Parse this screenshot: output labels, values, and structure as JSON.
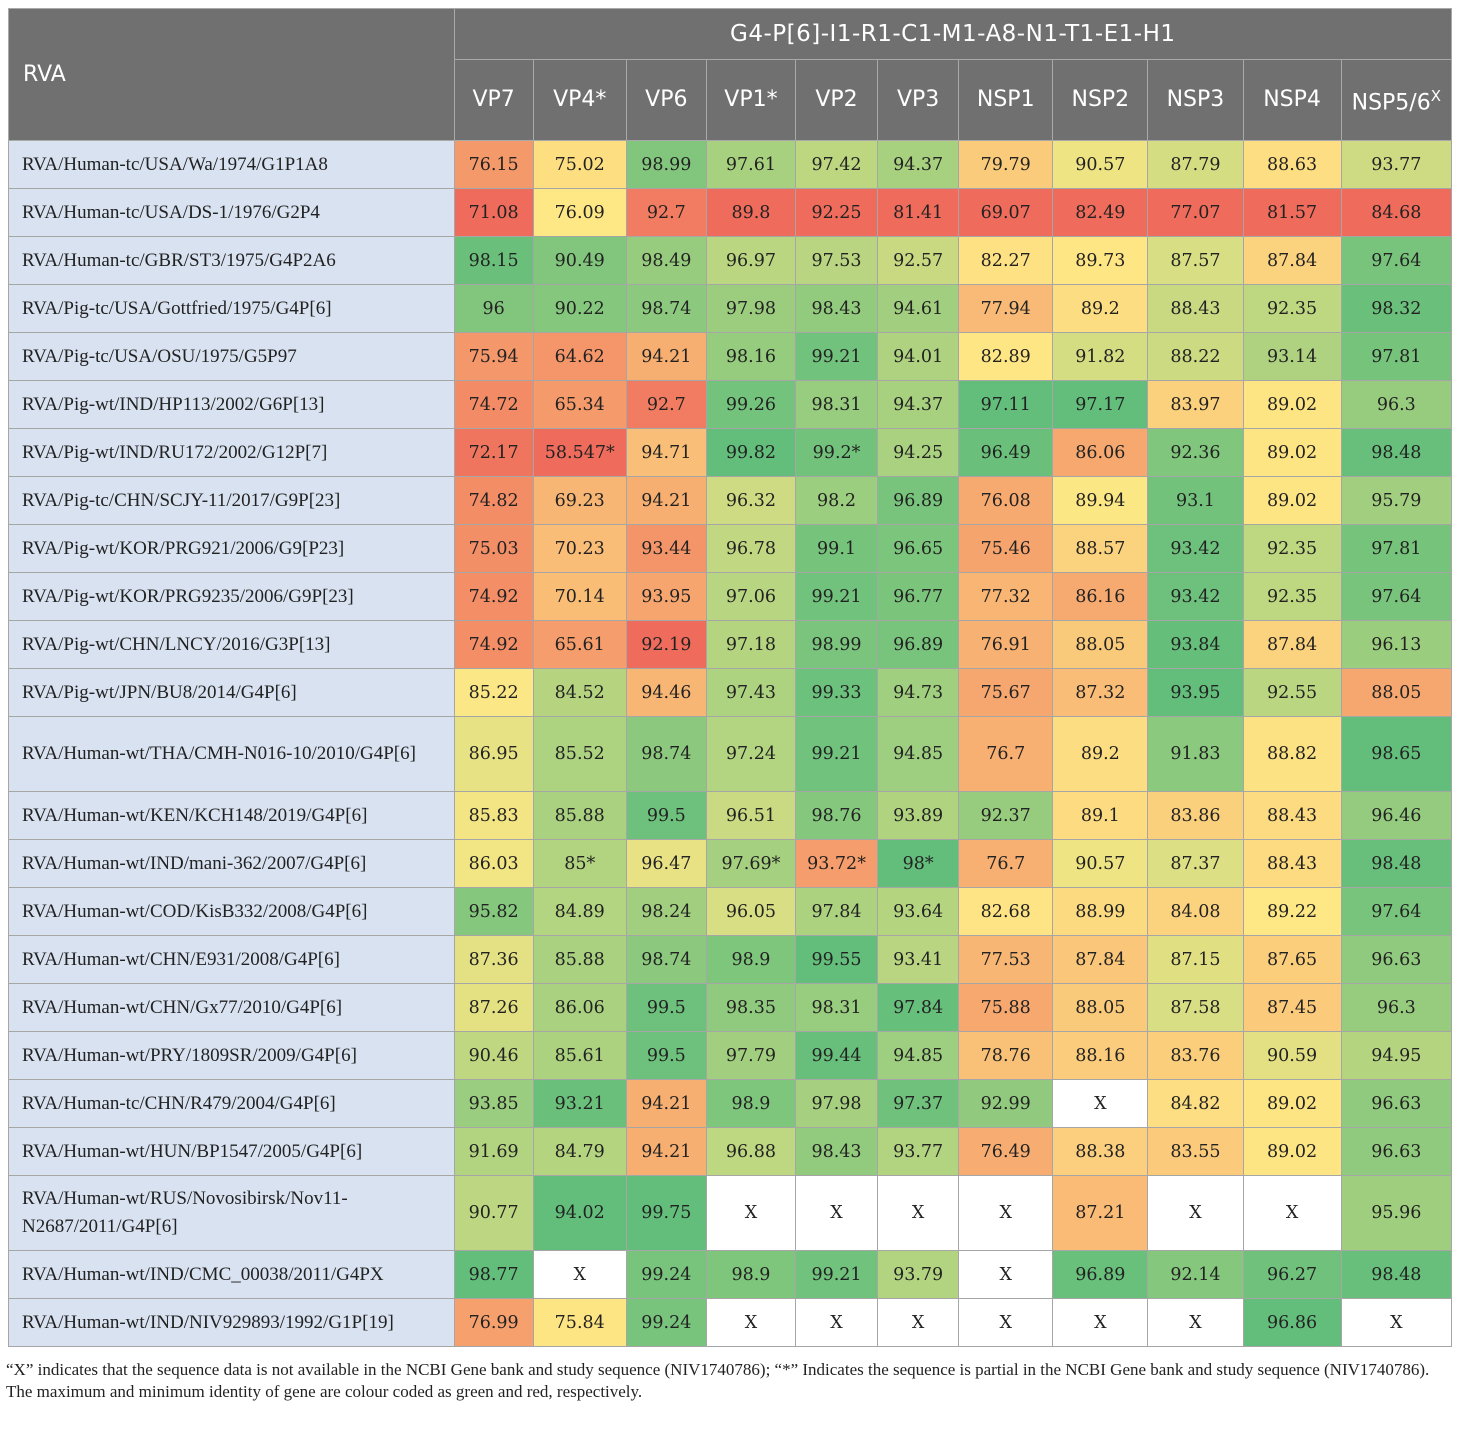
{
  "header": {
    "rva_label": "RVA",
    "group_label": "G4-P[6]-I1-R1-C1-M1-A8-N1-T1-E1-H1",
    "genes": [
      "VP7",
      "VP4*",
      "VP6",
      "VP1*",
      "VP2",
      "VP3",
      "NSP1",
      "NSP2",
      "NSP3",
      "NSP4",
      "NSP5/6"
    ],
    "nsp5_superscript": "X"
  },
  "rows": [
    {
      "strain": "RVA/Human-tc/USA/Wa/1974/G1P1A8",
      "values": [
        "76.15",
        "75.02",
        "98.99",
        "97.61",
        "97.42",
        "94.37",
        "79.79",
        "90.57",
        "87.79",
        "88.63",
        "93.77"
      ]
    },
    {
      "strain": "RVA/Human-tc/USA/DS-1/1976/G2P4",
      "values": [
        "71.08",
        "76.09",
        "92.7",
        "89.8",
        "92.25",
        "81.41",
        "69.07",
        "82.49",
        "77.07",
        "81.57",
        "84.68"
      ]
    },
    {
      "strain": "RVA/Human-tc/GBR/ST3/1975/G4P2A6",
      "values": [
        "98.15",
        "90.49",
        "98.49",
        "96.97",
        "97.53",
        "92.57",
        "82.27",
        "89.73",
        "87.57",
        "87.84",
        "97.64"
      ]
    },
    {
      "strain": "RVA/Pig-tc/USA/Gottfried/1975/G4P[6]",
      "values": [
        "96",
        "90.22",
        "98.74",
        "97.98",
        "98.43",
        "94.61",
        "77.94",
        "89.2",
        "88.43",
        "92.35",
        "98.32"
      ]
    },
    {
      "strain": "RVA/Pig-tc/USA/OSU/1975/G5P97",
      "values": [
        "75.94",
        "64.62",
        "94.21",
        "98.16",
        "99.21",
        "94.01",
        "82.89",
        "91.82",
        "88.22",
        "93.14",
        "97.81"
      ]
    },
    {
      "strain": "RVA/Pig-wt/IND/HP113/2002/G6P[13]",
      "values": [
        "74.72",
        "65.34",
        "92.7",
        "99.26",
        "98.31",
        "94.37",
        "97.11",
        "97.17",
        "83.97",
        "89.02",
        "96.3"
      ]
    },
    {
      "strain": "RVA/Pig-wt/IND/RU172/2002/G12P[7]",
      "values": [
        "72.17",
        "58.547*",
        "94.71",
        "99.82",
        "99.2*",
        "94.25",
        "96.49",
        "86.06",
        "92.36",
        "89.02",
        "98.48"
      ]
    },
    {
      "strain": "RVA/Pig-tc/CHN/SCJY-11/2017/G9P[23]",
      "values": [
        "74.82",
        "69.23",
        "94.21",
        "96.32",
        "98.2",
        "96.89",
        "76.08",
        "89.94",
        "93.1",
        "89.02",
        "95.79"
      ]
    },
    {
      "strain": "RVA/Pig-wt/KOR/PRG921/2006/G9[P23]",
      "values": [
        "75.03",
        "70.23",
        "93.44",
        "96.78",
        "99.1",
        "96.65",
        "75.46",
        "88.57",
        "93.42",
        "92.35",
        "97.81"
      ]
    },
    {
      "strain": "RVA/Pig-wt/KOR/PRG9235/2006/G9P[23]",
      "values": [
        "74.92",
        "70.14",
        "93.95",
        "97.06",
        "99.21",
        "96.77",
        "77.32",
        "86.16",
        "93.42",
        "92.35",
        "97.64"
      ]
    },
    {
      "strain": "RVA/Pig-wt/CHN/LNCY/2016/G3P[13]",
      "values": [
        "74.92",
        "65.61",
        "92.19",
        "97.18",
        "98.99",
        "96.89",
        "76.91",
        "88.05",
        "93.84",
        "87.84",
        "96.13"
      ]
    },
    {
      "strain": "RVA/Pig-wt/JPN/BU8/2014/G4P[6]",
      "values": [
        "85.22",
        "84.52",
        "94.46",
        "97.43",
        "99.33",
        "94.73",
        "75.67",
        "87.32",
        "93.95",
        "92.55",
        "88.05"
      ]
    },
    {
      "strain": "RVA/Human-wt/THA/CMH-N016-10/2010/G4P[6]",
      "values": [
        "86.95",
        "85.52",
        "98.74",
        "97.24",
        "99.21",
        "94.85",
        "76.7",
        "89.2",
        "91.83",
        "88.82",
        "98.65"
      ],
      "tall": true
    },
    {
      "strain": "RVA/Human-wt/KEN/KCH148/2019/G4P[6]",
      "values": [
        "85.83",
        "85.88",
        "99.5",
        "96.51",
        "98.76",
        "93.89",
        "92.37",
        "89.1",
        "83.86",
        "88.43",
        "96.46"
      ]
    },
    {
      "strain": "RVA/Human-wt/IND/mani-362/2007/G4P[6]",
      "values": [
        "86.03",
        "85*",
        "96.47",
        "97.69*",
        "93.72*",
        "98*",
        "76.7",
        "90.57",
        "87.37",
        "88.43",
        "98.48"
      ]
    },
    {
      "strain": "RVA/Human-wt/COD/KisB332/2008/G4P[6]",
      "values": [
        "95.82",
        "84.89",
        "98.24",
        "96.05",
        "97.84",
        "93.64",
        "82.68",
        "88.99",
        "84.08",
        "89.22",
        "97.64"
      ]
    },
    {
      "strain": "RVA/Human-wt/CHN/E931/2008/G4P[6]",
      "values": [
        "87.36",
        "85.88",
        "98.74",
        "98.9",
        "99.55",
        "93.41",
        "77.53",
        "87.84",
        "87.15",
        "87.65",
        "96.63"
      ]
    },
    {
      "strain": "RVA/Human-wt/CHN/Gx77/2010/G4P[6]",
      "values": [
        "87.26",
        "86.06",
        "99.5",
        "98.35",
        "98.31",
        "97.84",
        "75.88",
        "88.05",
        "87.58",
        "87.45",
        "96.3"
      ]
    },
    {
      "strain": "RVA/Human-wt/PRY/1809SR/2009/G4P[6]",
      "values": [
        "90.46",
        "85.61",
        "99.5",
        "97.79",
        "99.44",
        "94.85",
        "78.76",
        "88.16",
        "83.76",
        "90.59",
        "94.95"
      ]
    },
    {
      "strain": "RVA/Human-tc/CHN/R479/2004/G4P[6]",
      "values": [
        "93.85",
        "93.21",
        "94.21",
        "98.9",
        "97.98",
        "97.37",
        "92.99",
        "X",
        "84.82",
        "89.02",
        "96.63"
      ]
    },
    {
      "strain": "RVA/Human-wt/HUN/BP1547/2005/G4P[6]",
      "values": [
        "91.69",
        "84.79",
        "94.21",
        "96.88",
        "98.43",
        "93.77",
        "76.49",
        "88.38",
        "83.55",
        "89.02",
        "96.63"
      ]
    },
    {
      "strain": "RVA/Human-wt/RUS/Novosibirsk/Nov11-N2687/2011/G4P[6]",
      "values": [
        "90.77",
        "94.02",
        "99.75",
        "X",
        "X",
        "X",
        "X",
        "87.21",
        "X",
        "X",
        "95.96"
      ],
      "tall": true
    },
    {
      "strain": "RVA/Human-wt/IND/CMC_00038/2011/G4PX",
      "values": [
        "98.77",
        "X",
        "99.24",
        "98.9",
        "99.21",
        "93.79",
        "X",
        "96.89",
        "92.14",
        "96.27",
        "98.48"
      ]
    },
    {
      "strain": "RVA/Human-wt/IND/NIV929893/1992/G1P[19]",
      "values": [
        "76.99",
        "75.84",
        "99.24",
        "X",
        "X",
        "X",
        "X",
        "X",
        "X",
        "96.86",
        "X"
      ]
    }
  ],
  "footnotes": [
    "“X” indicates that the sequence data is not available in the NCBI Gene bank and study sequence (NIV1740786); “*” Indicates the sequence is partial in the NCBI Gene bank and study sequence (NIV1740786).",
    "The maximum and minimum identity of gene are colour coded as green and red, respectively."
  ],
  "colors": {
    "header_bg": "#707070",
    "strain_bg": "#d9e2f1",
    "scale_red": "#ef6b5b",
    "scale_yellow": "#fee885",
    "scale_green": "#63be7b",
    "missing_bg": "#ffffff"
  }
}
